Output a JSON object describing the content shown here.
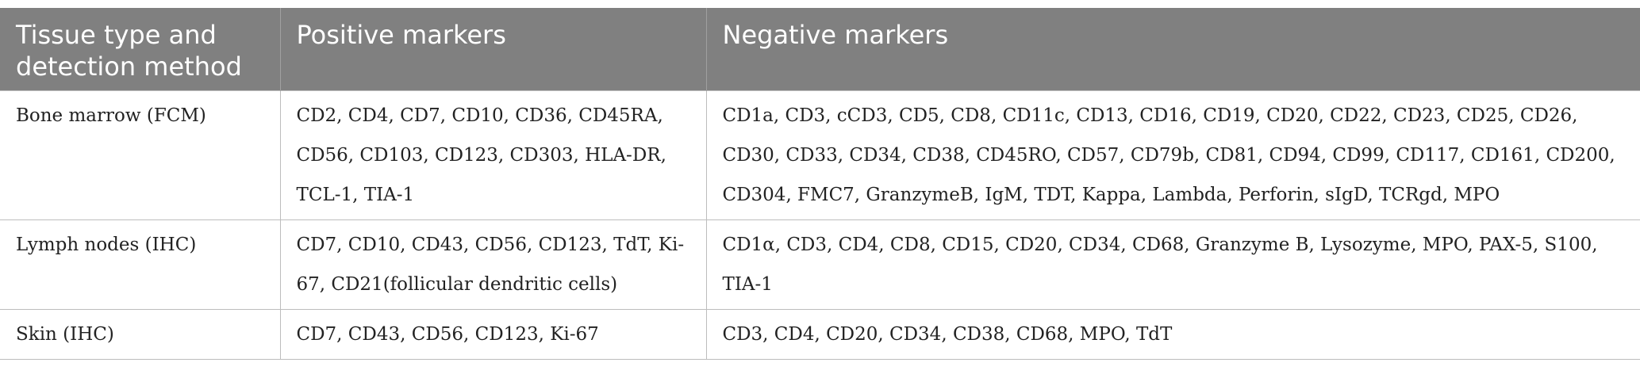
{
  "table": {
    "header": [
      "Tissue type and detection method",
      "Positive markers",
      "Negative markers"
    ],
    "rows": [
      [
        "Bone marrow (FCM)",
        "CD2, CD4, CD7, CD10, CD36, CD45RA, CD56, CD103, CD123, CD303, HLA-DR, TCL-1, TIA-1",
        "CD1a, CD3, cCD3, CD5, CD8, CD11c, CD13, CD16, CD19, CD20, CD22, CD23, CD25, CD26, CD30, CD33, CD34, CD38, CD45RO, CD57, CD79b, CD81, CD94, CD99, CD117, CD161, CD200, CD304, FMC7, GranzymeB, IgM, TDT, Kappa, Lambda, Perforin, sIgD, TCRgd, MPO"
      ],
      [
        "Lymph nodes (IHC)",
        "CD7, CD10, CD43, CD56, CD123, TdT, Ki-67, CD21(follicular dendritic cells)",
        "CD1α, CD3, CD4, CD8, CD15, CD20, CD34, CD68, Granzyme B, Lysozyme, MPO, PAX-5, S100, TIA-1"
      ],
      [
        "Skin (IHC)",
        "CD7, CD43, CD56, CD123, Ki-67",
        "CD3, CD4, CD20, CD34, CD38, CD68, MPO, TdT"
      ]
    ]
  }
}
